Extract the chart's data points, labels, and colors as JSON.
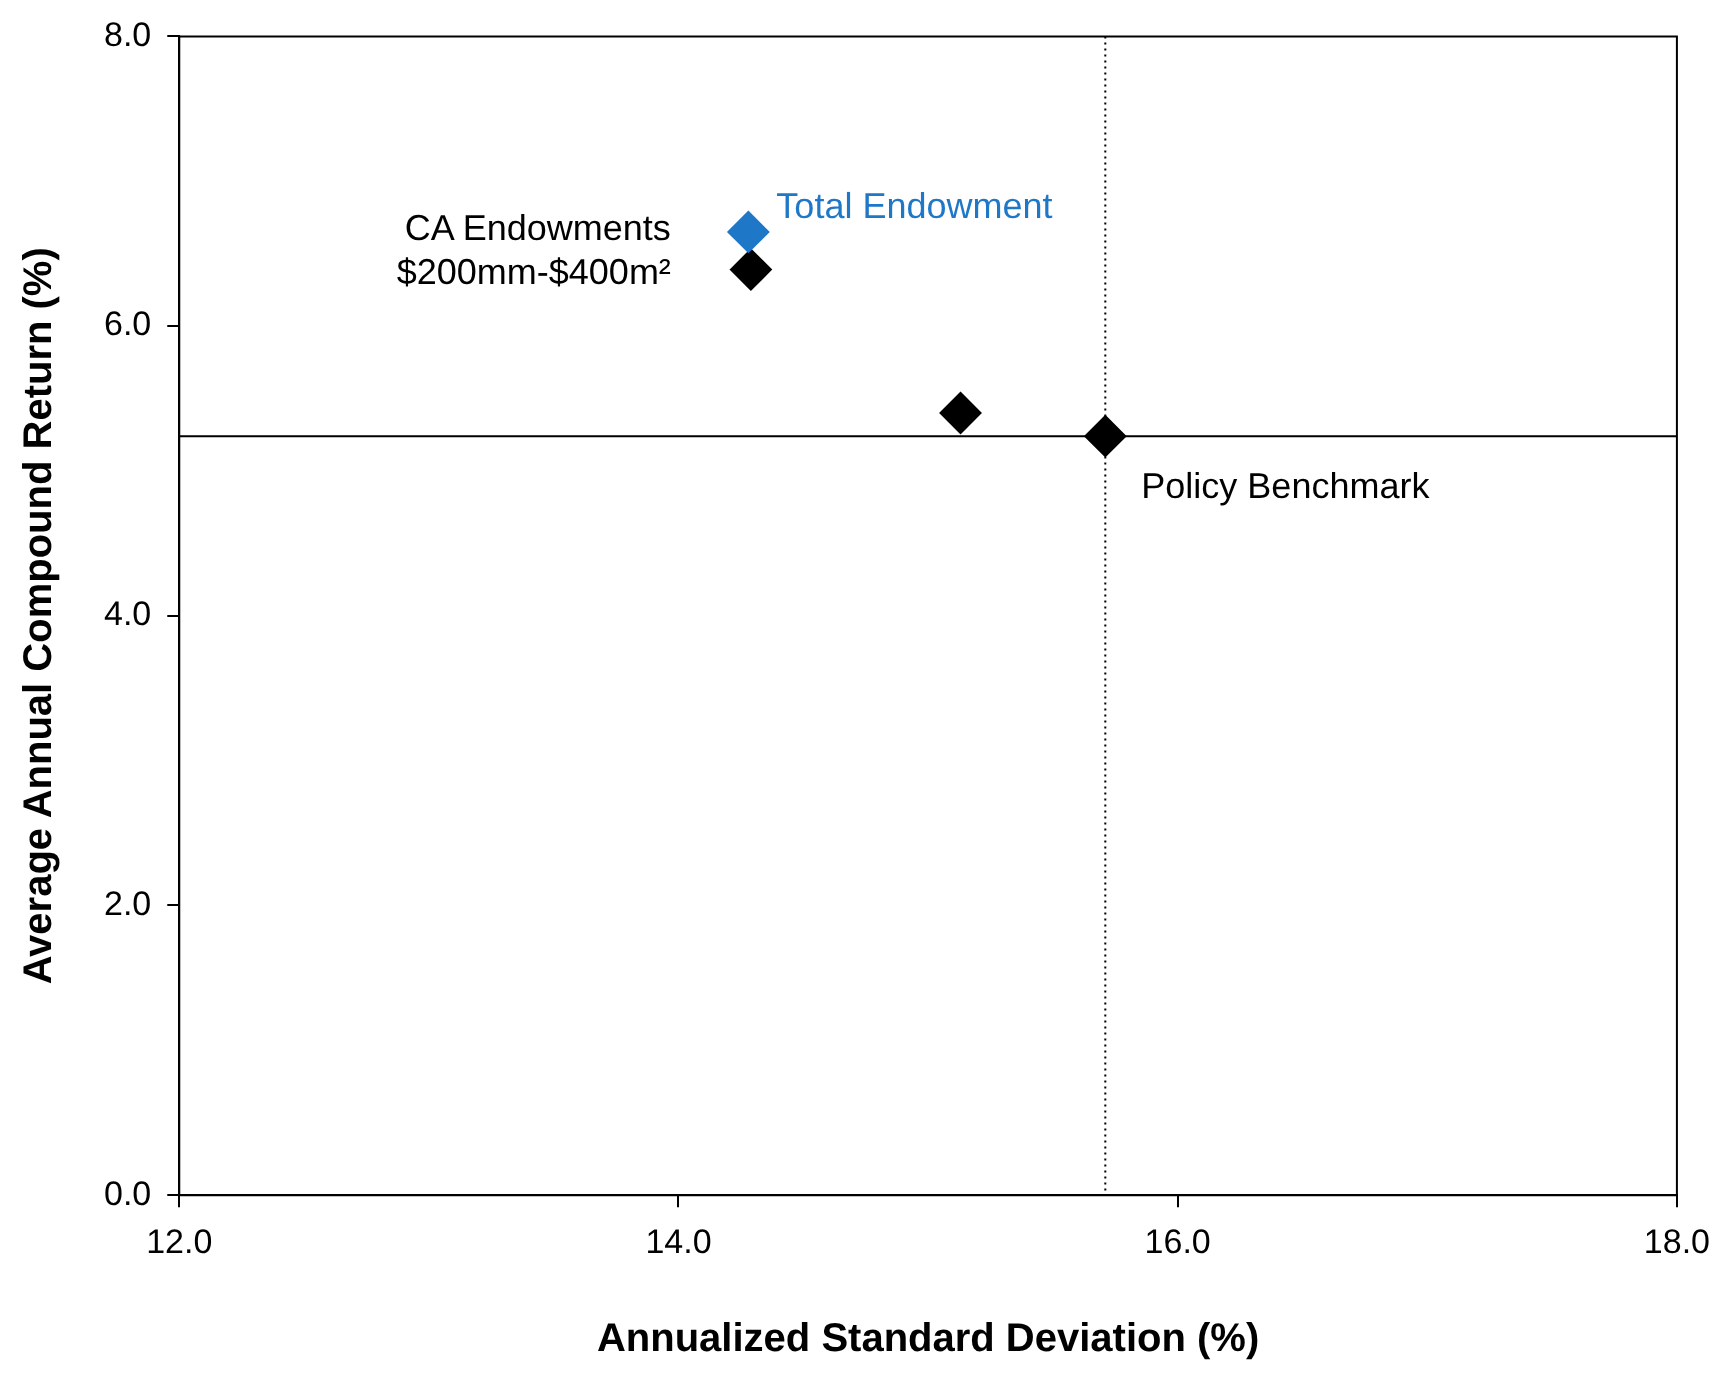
{
  "chart_data": {
    "type": "scatter",
    "xlabel": "Annualized Standard Deviation (%)",
    "ylabel": "Average Annual Compound Return (%)",
    "series": [
      {
        "name": "Total Endowment",
        "color": "#1f77c8",
        "x": [
          14.28
        ],
        "values": [
          6.65
        ]
      },
      {
        "name": "CA Endowments\n$200mm-$400m²",
        "color": "#000000",
        "x": [
          14.29
        ],
        "values": [
          6.39
        ]
      },
      {
        "color": "#000000",
        "x": [
          15.13
        ],
        "values": [
          5.4
        ]
      },
      {
        "name": "Policy Benchmark",
        "color": "#000000",
        "x": [
          15.71
        ],
        "values": [
          5.24
        ]
      }
    ],
    "xlim": [
      12,
      18
    ],
    "xticks": [
      {
        "value": 12,
        "label": "12.0"
      },
      {
        "value": 14,
        "label": "14.0"
      },
      {
        "value": 16,
        "label": "16.0"
      },
      {
        "value": 18,
        "label": "18.0"
      }
    ],
    "ylim": [
      0,
      8
    ],
    "yticks": [
      {
        "value": 0,
        "label": "0.0"
      },
      {
        "value": 2,
        "label": "2.0"
      },
      {
        "value": 4,
        "label": "4.0"
      },
      {
        "value": 6,
        "label": "6.0"
      },
      {
        "value": 8,
        "label": "8.0"
      }
    ],
    "ref_lines": [
      {
        "axis": "x",
        "value": 15.71,
        "color": "#000000",
        "line_style": "dotted"
      },
      {
        "axis": "y",
        "value": 5.24,
        "color": "#000000",
        "line_style": "solid"
      }
    ],
    "marker": "diamond",
    "grid": false,
    "legend": false
  }
}
